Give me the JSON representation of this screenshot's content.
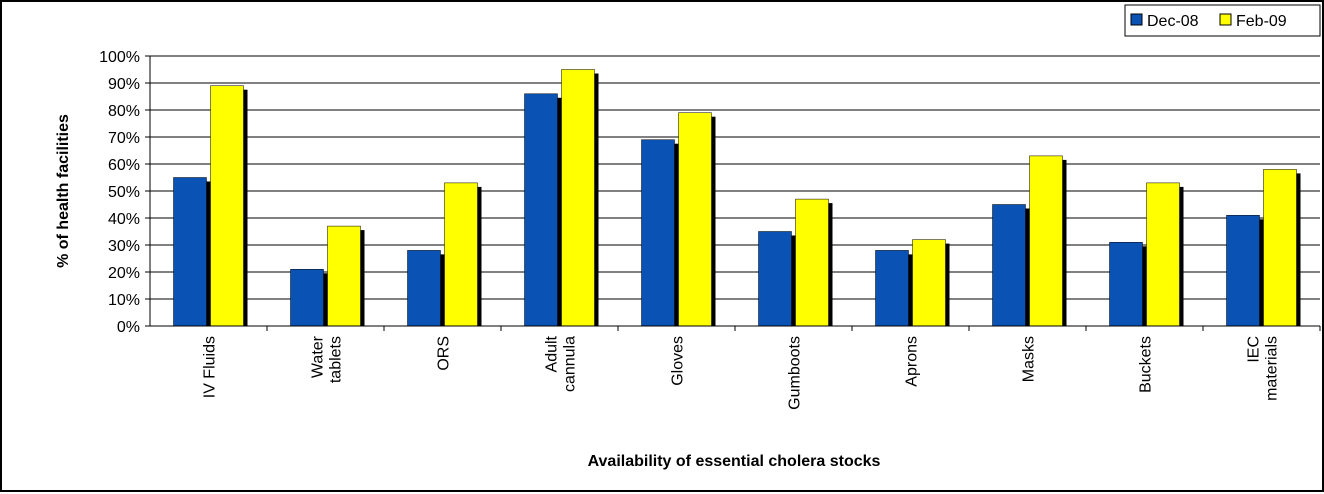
{
  "chart_data": {
    "type": "bar",
    "title": "",
    "xlabel": "Availability of essential cholera stocks",
    "ylabel": "% of health facilities",
    "categories": [
      [
        "IV Fluids"
      ],
      [
        "Water",
        "tablets"
      ],
      [
        "ORS"
      ],
      [
        "Adult",
        "cannula"
      ],
      [
        "Gloves"
      ],
      [
        "Gumboots"
      ],
      [
        "Aprons"
      ],
      [
        "Masks"
      ],
      [
        "Buckets"
      ],
      [
        "IEC",
        "materials"
      ]
    ],
    "series": [
      {
        "name": "Dec-08",
        "color": "#0a52b4",
        "values": [
          55,
          21,
          28,
          86,
          69,
          35,
          28,
          45,
          31,
          41
        ]
      },
      {
        "name": "Feb-09",
        "color": "#ffff00",
        "values": [
          89,
          37,
          53,
          95,
          79,
          47,
          32,
          63,
          53,
          58
        ]
      }
    ],
    "ylim": [
      0,
      100
    ],
    "yticks": [
      "0%",
      "10%",
      "20%",
      "30%",
      "40%",
      "50%",
      "60%",
      "70%",
      "80%",
      "90%",
      "100%"
    ],
    "grid": true,
    "legend_position": "top-right"
  }
}
